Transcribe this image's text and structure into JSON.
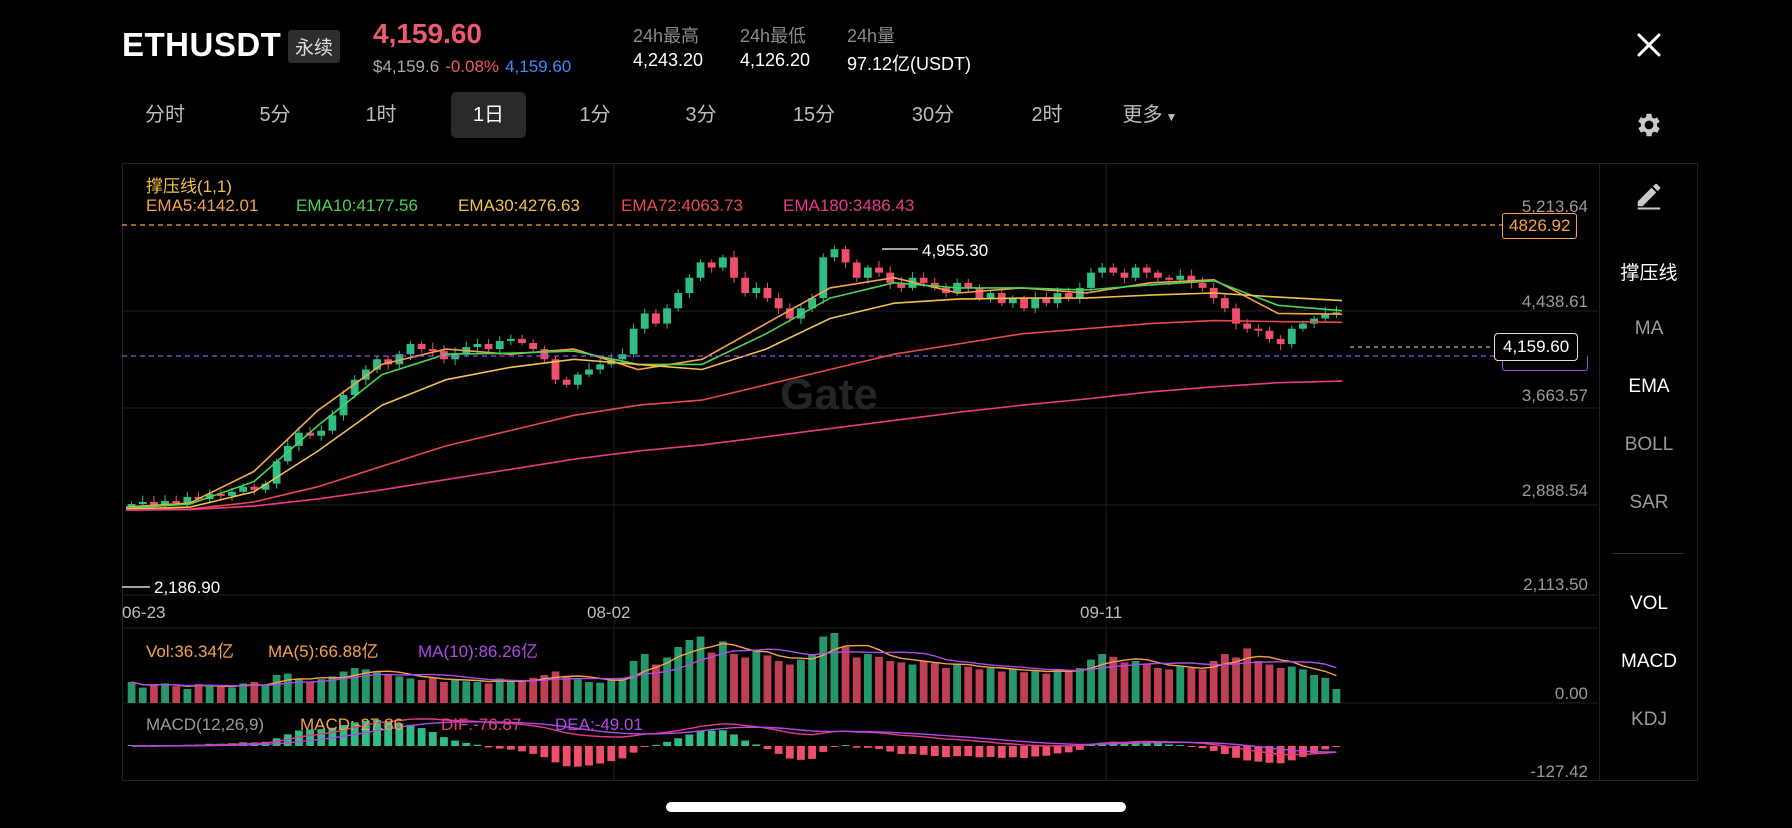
{
  "header": {
    "symbol": "ETHUSDT",
    "contract_type": "永续",
    "last_price": "4,159.60",
    "usd_price": "$4,159.6",
    "change_pct": "-0.08%",
    "mark_price": "4,159.60",
    "stats": [
      {
        "label": "24h最高",
        "value": "4,243.20"
      },
      {
        "label": "24h最低",
        "value": "4,126.20"
      },
      {
        "label": "24h量",
        "value": "97.12亿(USDT)"
      }
    ]
  },
  "timeframes": [
    "分时",
    "5分",
    "1时",
    "1日",
    "1分",
    "3分",
    "15分",
    "30分",
    "2时",
    "更多"
  ],
  "active_timeframe": "1日",
  "sidebar": {
    "main_indicators": [
      "撑压线",
      "MA",
      "EMA",
      "BOLL",
      "SAR"
    ],
    "sub_indicators": [
      "VOL",
      "MACD",
      "KDJ"
    ],
    "active": [
      "撑压线",
      "EMA",
      "VOL",
      "MACD"
    ]
  },
  "main_chart": {
    "indicator_title": "撑压线(1,1)",
    "ema_labels": [
      {
        "text": "EMA5:4142.01",
        "color": "#f5a34a"
      },
      {
        "text": "EMA10:4177.56",
        "color": "#4ad35a"
      },
      {
        "text": "EMA30:4276.63",
        "color": "#f3c14a"
      },
      {
        "text": "EMA72:4063.73",
        "color": "#e94a4a"
      },
      {
        "text": "EMA180:3486.43",
        "color": "#e93a8a"
      }
    ],
    "y_ticks": [
      "5,213.64",
      "4,438.61",
      "3,663.57",
      "2,888.54",
      "2,113.50"
    ],
    "x_ticks": [
      "06-23",
      "08-02",
      "09-11"
    ],
    "resistance_tag": "4826.92",
    "current_tag": "4,159.60",
    "high_label": "4,955.30",
    "low_label": "2,186.90",
    "watermark": "Gate"
  },
  "volume": {
    "labels": [
      {
        "text": "Vol:36.34亿",
        "color": "#f5a34a"
      },
      {
        "text": "MA(5):66.88亿",
        "color": "#f5a34a"
      },
      {
        "text": "MA(10):86.26亿",
        "color": "#b04ae9"
      }
    ],
    "y_tick": "0.00"
  },
  "macd": {
    "labels": [
      {
        "text": "MACD(12,26,9)",
        "color": "#9a9a9e"
      },
      {
        "text": "MACD:-27.86",
        "color": "#f5a34a"
      },
      {
        "text": "DIF:-76.87",
        "color": "#e93a8a"
      },
      {
        "text": "DEA:-49.01",
        "color": "#b04ae9"
      }
    ],
    "y_tick": "-127.42"
  },
  "colors": {
    "up": "#2fbd85",
    "down": "#ef4f6a",
    "accent_price": "#ef5a6f",
    "mark": "#3d8bff"
  },
  "chart_data": {
    "type": "candlestick",
    "ylim": [
      2113.5,
      5213.64
    ],
    "closes": [
      2280,
      2300,
      2270,
      2310,
      2290,
      2350,
      2330,
      2380,
      2360,
      2400,
      2450,
      2420,
      2480,
      2700,
      2850,
      2980,
      2950,
      3000,
      3150,
      3350,
      3500,
      3600,
      3700,
      3650,
      3750,
      3850,
      3800,
      3780,
      3700,
      3760,
      3820,
      3850,
      3800,
      3880,
      3900,
      3860,
      3800,
      3700,
      3500,
      3450,
      3550,
      3600,
      3650,
      3700,
      3750,
      4000,
      4150,
      4050,
      4200,
      4350,
      4500,
      4650,
      4600,
      4700,
      4500,
      4350,
      4400,
      4300,
      4200,
      4100,
      4200,
      4300,
      4700,
      4780,
      4650,
      4500,
      4600,
      4550,
      4450,
      4400,
      4500,
      4450,
      4400,
      4350,
      4450,
      4400,
      4300,
      4350,
      4250,
      4300,
      4200,
      4300,
      4250,
      4350,
      4300,
      4400,
      4550,
      4600,
      4550,
      4500,
      4600,
      4550,
      4500,
      4480,
      4520,
      4450,
      4400,
      4300,
      4200,
      4050,
      4000,
      3980,
      3900,
      3850,
      4000,
      4050,
      4100,
      4150,
      4160
    ],
    "volume": [
      30,
      22,
      25,
      28,
      24,
      20,
      27,
      26,
      23,
      22,
      28,
      30,
      25,
      40,
      42,
      35,
      30,
      34,
      38,
      45,
      50,
      48,
      44,
      40,
      38,
      35,
      33,
      36,
      30,
      34,
      31,
      30,
      28,
      35,
      32,
      30,
      36,
      40,
      45,
      38,
      34,
      30,
      29,
      33,
      36,
      60,
      70,
      55,
      65,
      80,
      90,
      95,
      72,
      88,
      70,
      65,
      75,
      68,
      60,
      55,
      62,
      70,
      95,
      100,
      80,
      65,
      70,
      66,
      60,
      58,
      55,
      60,
      57,
      50,
      55,
      52,
      48,
      50,
      45,
      48,
      44,
      46,
      42,
      48,
      46,
      50,
      62,
      70,
      66,
      58,
      60,
      55,
      50,
      48,
      52,
      50,
      48,
      60,
      70,
      65,
      78,
      60,
      55,
      50,
      52,
      48,
      40,
      36,
      20
    ],
    "ema": {
      "EMA5": [
        2250,
        2290,
        2600,
        3200,
        3650,
        3800,
        3750,
        3800,
        3600,
        3700,
        4050,
        4400,
        4500,
        4350,
        4400,
        4350,
        4450,
        4480,
        4150,
        4142
      ],
      "EMA10": [
        2240,
        2280,
        2500,
        3050,
        3550,
        3750,
        3760,
        3780,
        3650,
        3650,
        3950,
        4300,
        4450,
        4400,
        4400,
        4380,
        4430,
        4470,
        4230,
        4177
      ],
      "EMA30": [
        2230,
        2250,
        2400,
        2800,
        3250,
        3500,
        3620,
        3700,
        3650,
        3600,
        3800,
        4100,
        4250,
        4290,
        4300,
        4300,
        4330,
        4350,
        4310,
        4276
      ],
      "EMA72": [
        2220,
        2230,
        2300,
        2450,
        2650,
        2850,
        3000,
        3150,
        3250,
        3300,
        3450,
        3600,
        3750,
        3850,
        3950,
        4000,
        4050,
        4080,
        4070,
        4063
      ],
      "EMA180": [
        2220,
        2225,
        2260,
        2330,
        2420,
        2520,
        2620,
        2720,
        2800,
        2860,
        2940,
        3020,
        3100,
        3180,
        3250,
        3310,
        3380,
        3430,
        3470,
        3486
      ]
    },
    "macd": {
      "dif_last": -76.87,
      "dea_last": -49.01,
      "macd_last": -27.86
    }
  }
}
